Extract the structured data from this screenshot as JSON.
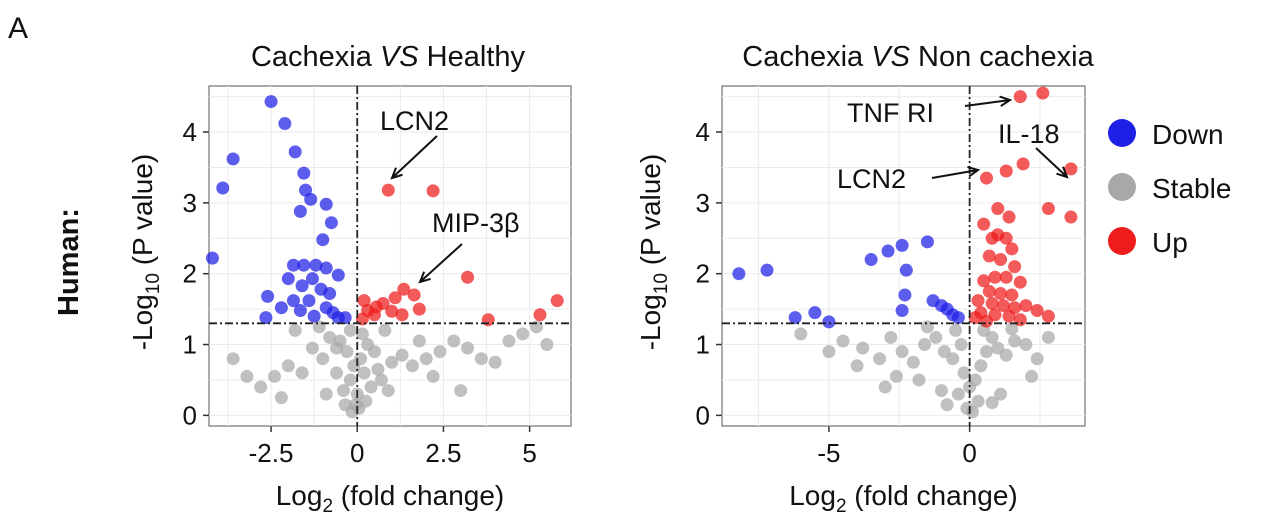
{
  "panel_label": "A",
  "row_label": "Human:",
  "legend": {
    "items": [
      {
        "label": "Down",
        "color": "#1f1fe6"
      },
      {
        "label": "Stable",
        "color": "#a8a8a8"
      },
      {
        "label": "Up",
        "color": "#ee1c1c"
      }
    ]
  },
  "chart_data": [
    {
      "type": "scatter",
      "title_parts": [
        "Cachexia ",
        "VS",
        " Healthy"
      ],
      "xlabel": "Log2 (fold change)",
      "ylabel": "-Log10 (P value)",
      "xlim": [
        -4.3,
        6.2
      ],
      "ylim": [
        -0.15,
        4.65
      ],
      "xticks": [
        -2.5,
        0,
        2.5,
        5
      ],
      "xtick_labels": [
        "-2.5",
        "0",
        "2.5",
        "5"
      ],
      "yticks": [
        0,
        1,
        2,
        3,
        4
      ],
      "ytick_labels": [
        "0",
        "1",
        "2",
        "3",
        "4"
      ],
      "grid": true,
      "thresholds": {
        "x": 0,
        "y": 1.3
      },
      "series": [
        {
          "name": "Down",
          "color": "#1f1fe6",
          "points": [
            [
              -2.5,
              4.43
            ],
            [
              -3.9,
              3.21
            ],
            [
              -3.6,
              3.62
            ],
            [
              -2.1,
              4.12
            ],
            [
              -1.8,
              3.72
            ],
            [
              -1.55,
              3.42
            ],
            [
              -1.5,
              3.18
            ],
            [
              -1.65,
              2.88
            ],
            [
              -1.35,
              3.05
            ],
            [
              -0.9,
              2.98
            ],
            [
              -0.75,
              2.72
            ],
            [
              -1.0,
              2.48
            ],
            [
              -4.2,
              2.22
            ],
            [
              -1.85,
              2.12
            ],
            [
              -1.55,
              2.12
            ],
            [
              -1.2,
              2.12
            ],
            [
              -0.9,
              2.08
            ],
            [
              -0.55,
              1.98
            ],
            [
              -2.0,
              1.93
            ],
            [
              -1.6,
              1.83
            ],
            [
              -1.3,
              1.93
            ],
            [
              -1.05,
              1.78
            ],
            [
              -0.8,
              1.72
            ],
            [
              -2.6,
              1.68
            ],
            [
              -1.85,
              1.62
            ],
            [
              -1.4,
              1.62
            ],
            [
              -2.2,
              1.52
            ],
            [
              -0.9,
              1.52
            ],
            [
              -1.65,
              1.48
            ],
            [
              -0.7,
              1.45
            ],
            [
              -2.65,
              1.38
            ],
            [
              -1.25,
              1.4
            ],
            [
              -0.55,
              1.38
            ],
            [
              -0.35,
              1.38
            ]
          ]
        },
        {
          "name": "Up",
          "color": "#ee1c1c",
          "points": [
            [
              0.9,
              3.18
            ],
            [
              2.2,
              3.17
            ],
            [
              3.2,
              1.95
            ],
            [
              1.35,
              1.78
            ],
            [
              1.65,
              1.7
            ],
            [
              1.1,
              1.66
            ],
            [
              0.75,
              1.58
            ],
            [
              0.55,
              1.53
            ],
            [
              0.3,
              1.48
            ],
            [
              1.0,
              1.47
            ],
            [
              1.8,
              1.5
            ],
            [
              5.8,
              1.62
            ],
            [
              5.3,
              1.42
            ],
            [
              3.8,
              1.35
            ],
            [
              0.5,
              1.42
            ],
            [
              0.15,
              1.36
            ],
            [
              0.2,
              1.62
            ],
            [
              1.3,
              1.42
            ]
          ]
        },
        {
          "name": "Stable",
          "color": "#a8a8a8",
          "points": [
            [
              -0.8,
              1.1
            ],
            [
              -0.5,
              1.05
            ],
            [
              -0.3,
              0.9
            ],
            [
              -0.1,
              0.7
            ],
            [
              0.1,
              0.8
            ],
            [
              0.3,
              1.0
            ],
            [
              0.5,
              0.9
            ],
            [
              0.2,
              0.6
            ],
            [
              -0.2,
              0.5
            ],
            [
              0.0,
              0.3
            ],
            [
              -0.4,
              0.35
            ],
            [
              0.4,
              0.4
            ],
            [
              -0.6,
              0.6
            ],
            [
              0.6,
              0.65
            ],
            [
              -1.0,
              0.8
            ],
            [
              1.0,
              0.75
            ],
            [
              -1.3,
              0.95
            ],
            [
              1.3,
              0.85
            ],
            [
              1.6,
              0.7
            ],
            [
              -1.6,
              0.6
            ],
            [
              2.0,
              0.8
            ],
            [
              -2.0,
              0.7
            ],
            [
              2.4,
              0.9
            ],
            [
              -2.4,
              0.55
            ],
            [
              2.8,
              1.05
            ],
            [
              3.2,
              0.95
            ],
            [
              3.6,
              0.8
            ],
            [
              4.0,
              0.75
            ],
            [
              4.4,
              1.05
            ],
            [
              4.8,
              1.15
            ],
            [
              5.2,
              1.25
            ],
            [
              5.5,
              1.0
            ],
            [
              -2.8,
              0.4
            ],
            [
              -3.2,
              0.55
            ],
            [
              -3.6,
              0.8
            ],
            [
              -1.8,
              1.2
            ],
            [
              -1.1,
              1.25
            ],
            [
              -0.2,
              1.2
            ],
            [
              0.15,
              1.15
            ],
            [
              0.8,
              1.2
            ],
            [
              -0.05,
              0.15
            ],
            [
              0.05,
              0.1
            ],
            [
              -0.15,
              0.05
            ],
            [
              0.25,
              0.2
            ],
            [
              -0.35,
              0.15
            ],
            [
              1.8,
              1.05
            ],
            [
              2.2,
              0.55
            ],
            [
              3.0,
              0.35
            ],
            [
              -2.2,
              0.25
            ],
            [
              -0.9,
              0.3
            ],
            [
              0.9,
              0.35
            ],
            [
              -0.6,
              0.95
            ],
            [
              0.7,
              0.5
            ]
          ]
        }
      ],
      "annotations": [
        {
          "text": "LCN2"
        },
        {
          "text": "MIP-3β"
        }
      ]
    },
    {
      "type": "scatter",
      "title_parts": [
        "Cachexia ",
        "VS",
        " Non cachexia"
      ],
      "xlabel": "Log2 (fold change)",
      "ylabel": "-Log10 (P value)",
      "xlim": [
        -8.8,
        4.1
      ],
      "ylim": [
        -0.15,
        4.65
      ],
      "xticks": [
        -5,
        0
      ],
      "xtick_labels": [
        "-5",
        "0"
      ],
      "yticks": [
        0,
        1,
        2,
        3,
        4
      ],
      "ytick_labels": [
        "0",
        "1",
        "2",
        "3",
        "4"
      ],
      "grid": true,
      "thresholds": {
        "x": 0,
        "y": 1.3
      },
      "series": [
        {
          "name": "Down",
          "color": "#1f1fe6",
          "points": [
            [
              -8.2,
              2.0
            ],
            [
              -7.2,
              2.05
            ],
            [
              -6.2,
              1.38
            ],
            [
              -5.5,
              1.45
            ],
            [
              -5.0,
              1.32
            ],
            [
              -3.5,
              2.2
            ],
            [
              -2.9,
              2.32
            ],
            [
              -2.4,
              2.4
            ],
            [
              -1.5,
              2.45
            ],
            [
              -2.25,
              2.05
            ],
            [
              -2.3,
              1.7
            ],
            [
              -2.4,
              1.48
            ],
            [
              -1.3,
              1.62
            ],
            [
              -1.0,
              1.55
            ],
            [
              -0.8,
              1.5
            ],
            [
              -0.6,
              1.42
            ],
            [
              -0.4,
              1.38
            ]
          ]
        },
        {
          "name": "Up",
          "color": "#ee1c1c",
          "points": [
            [
              1.8,
              4.5
            ],
            [
              2.6,
              4.55
            ],
            [
              3.6,
              3.48
            ],
            [
              1.9,
              3.55
            ],
            [
              0.6,
              3.35
            ],
            [
              1.3,
              3.45
            ],
            [
              2.8,
              2.92
            ],
            [
              3.6,
              2.8
            ],
            [
              1.0,
              2.92
            ],
            [
              1.4,
              2.8
            ],
            [
              0.5,
              2.7
            ],
            [
              0.8,
              2.5
            ],
            [
              1.0,
              2.55
            ],
            [
              1.3,
              2.5
            ],
            [
              1.5,
              2.35
            ],
            [
              0.7,
              2.25
            ],
            [
              1.1,
              2.2
            ],
            [
              1.6,
              2.1
            ],
            [
              0.9,
              1.95
            ],
            [
              1.3,
              1.95
            ],
            [
              0.5,
              1.9
            ],
            [
              1.8,
              1.88
            ],
            [
              0.7,
              1.75
            ],
            [
              1.1,
              1.72
            ],
            [
              1.5,
              1.7
            ],
            [
              0.3,
              1.62
            ],
            [
              0.8,
              1.58
            ],
            [
              1.2,
              1.55
            ],
            [
              1.6,
              1.52
            ],
            [
              2.0,
              1.55
            ],
            [
              2.4,
              1.48
            ],
            [
              0.4,
              1.45
            ],
            [
              0.9,
              1.42
            ],
            [
              1.4,
              1.4
            ],
            [
              0.2,
              1.38
            ],
            [
              2.8,
              1.4
            ],
            [
              1.8,
              1.35
            ],
            [
              0.6,
              1.33
            ]
          ]
        },
        {
          "name": "Stable",
          "color": "#a8a8a8",
          "points": [
            [
              -6.0,
              1.15
            ],
            [
              -4.5,
              1.05
            ],
            [
              -3.8,
              0.95
            ],
            [
              -3.2,
              0.8
            ],
            [
              -2.8,
              1.1
            ],
            [
              -2.4,
              0.9
            ],
            [
              -2.0,
              0.75
            ],
            [
              -1.6,
              1.0
            ],
            [
              -1.2,
              1.1
            ],
            [
              -0.9,
              0.9
            ],
            [
              -0.6,
              0.8
            ],
            [
              -0.3,
              1.0
            ],
            [
              -0.2,
              0.6
            ],
            [
              0.0,
              0.4
            ],
            [
              0.2,
              0.5
            ],
            [
              0.4,
              0.7
            ],
            [
              0.6,
              0.9
            ],
            [
              0.8,
              1.1
            ],
            [
              1.0,
              0.95
            ],
            [
              1.3,
              0.85
            ],
            [
              1.6,
              1.05
            ],
            [
              2.0,
              1.0
            ],
            [
              2.4,
              0.8
            ],
            [
              2.8,
              1.1
            ],
            [
              -0.4,
              0.3
            ],
            [
              0.3,
              0.2
            ],
            [
              -0.1,
              0.1
            ],
            [
              0.1,
              0.05
            ],
            [
              -1.8,
              0.5
            ],
            [
              -2.6,
              0.55
            ],
            [
              -4.0,
              0.7
            ],
            [
              -5.0,
              0.9
            ],
            [
              -1.0,
              0.35
            ],
            [
              1.1,
              0.3
            ],
            [
              -0.5,
              1.2
            ],
            [
              0.5,
              1.2
            ],
            [
              -1.5,
              1.25
            ],
            [
              1.5,
              1.22
            ],
            [
              -3.0,
              0.4
            ],
            [
              2.2,
              0.55
            ],
            [
              -0.8,
              0.15
            ],
            [
              0.8,
              0.18
            ]
          ]
        }
      ],
      "annotations": [
        {
          "text": "TNF RI"
        },
        {
          "text": "IL-18"
        },
        {
          "text": "LCN2"
        }
      ]
    }
  ]
}
